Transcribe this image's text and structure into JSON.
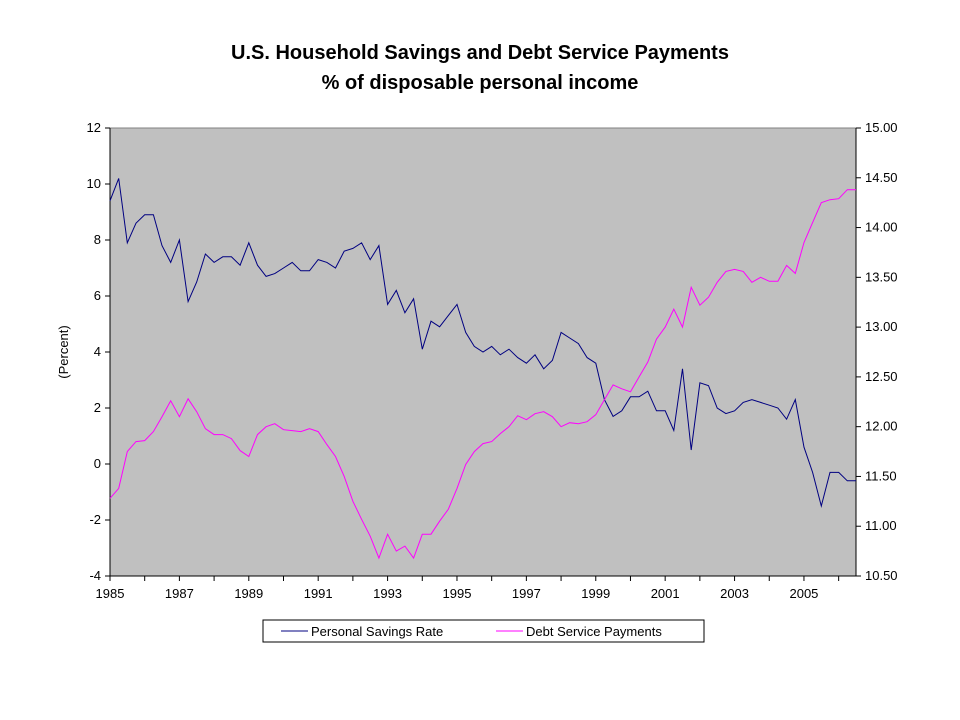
{
  "chart_data": {
    "type": "line",
    "title": "U.S. Household Savings and Debt Service Payments",
    "subtitle": "% of disposable personal income",
    "ylabel": "(Percent)",
    "y2label": "",
    "x_ticks": [
      "1985",
      "1987",
      "1989",
      "1991",
      "1993",
      "1995",
      "1997",
      "1999",
      "2001",
      "2003",
      "2005"
    ],
    "y_ticks": [
      "12",
      "10",
      "8",
      "6",
      "4",
      "2",
      "0",
      "-2",
      "-4"
    ],
    "y2_ticks": [
      "15.00",
      "14.50",
      "14.00",
      "13.50",
      "13.00",
      "12.50",
      "12.00",
      "11.50",
      "11.00",
      "10.50"
    ],
    "ylim": [
      -4,
      12
    ],
    "y2lim": [
      10.5,
      15.0
    ],
    "xlim": [
      1985,
      2006.5
    ],
    "grid": false,
    "plot_background": "#c0c0c0",
    "legend_position": "bottom",
    "x": [
      1985.0,
      1985.25,
      1985.5,
      1985.75,
      1986.0,
      1986.25,
      1986.5,
      1986.75,
      1987.0,
      1987.25,
      1987.5,
      1987.75,
      1988.0,
      1988.25,
      1988.5,
      1988.75,
      1989.0,
      1989.25,
      1989.5,
      1989.75,
      1990.0,
      1990.25,
      1990.5,
      1990.75,
      1991.0,
      1991.25,
      1991.5,
      1991.75,
      1992.0,
      1992.25,
      1992.5,
      1992.75,
      1993.0,
      1993.25,
      1993.5,
      1993.75,
      1994.0,
      1994.25,
      1994.5,
      1994.75,
      1995.0,
      1995.25,
      1995.5,
      1995.75,
      1996.0,
      1996.25,
      1996.5,
      1996.75,
      1997.0,
      1997.25,
      1997.5,
      1997.75,
      1998.0,
      1998.25,
      1998.5,
      1998.75,
      1999.0,
      1999.25,
      1999.5,
      1999.75,
      2000.0,
      2000.25,
      2000.5,
      2000.75,
      2001.0,
      2001.25,
      2001.5,
      2001.75,
      2002.0,
      2002.25,
      2002.5,
      2002.75,
      2003.0,
      2003.25,
      2003.5,
      2003.75,
      2004.0,
      2004.25,
      2004.5,
      2004.75,
      2005.0,
      2005.25,
      2005.5,
      2005.75,
      2006.0,
      2006.25,
      2006.5
    ],
    "series": [
      {
        "name": "Personal Savings Rate",
        "axis": "left",
        "color": "#000080",
        "values": [
          9.4,
          10.2,
          7.9,
          8.6,
          8.9,
          8.9,
          7.8,
          7.2,
          8.0,
          5.8,
          6.5,
          7.5,
          7.2,
          7.4,
          7.4,
          7.1,
          7.9,
          7.1,
          6.7,
          6.8,
          7.0,
          7.2,
          6.9,
          6.9,
          7.3,
          7.2,
          7.0,
          7.6,
          7.7,
          7.9,
          7.3,
          7.8,
          5.7,
          6.2,
          5.4,
          5.9,
          4.1,
          5.1,
          4.9,
          5.3,
          5.7,
          4.7,
          4.2,
          4.0,
          4.2,
          3.9,
          4.1,
          3.8,
          3.6,
          3.9,
          3.4,
          3.7,
          4.7,
          4.5,
          4.3,
          3.8,
          3.6,
          2.3,
          1.7,
          1.9,
          2.4,
          2.4,
          2.6,
          1.9,
          1.9,
          1.2,
          3.4,
          0.5,
          2.9,
          2.8,
          2.0,
          1.8,
          1.9,
          2.2,
          2.3,
          2.2,
          2.1,
          2.0,
          1.6,
          2.3,
          0.6,
          -0.3,
          -1.5,
          -0.3,
          -0.3,
          -0.6,
          -0.6
        ]
      },
      {
        "name": "Debt Service Payments",
        "axis": "right",
        "color": "#ff00ff",
        "values": [
          11.28,
          11.38,
          11.75,
          11.85,
          11.86,
          11.95,
          12.1,
          12.26,
          12.1,
          12.28,
          12.15,
          11.98,
          11.92,
          11.92,
          11.88,
          11.76,
          11.7,
          11.92,
          12.0,
          12.03,
          11.97,
          11.96,
          11.95,
          11.98,
          11.95,
          11.82,
          11.7,
          11.5,
          11.25,
          11.07,
          10.9,
          10.68,
          10.92,
          10.75,
          10.8,
          10.68,
          10.92,
          10.92,
          11.05,
          11.17,
          11.38,
          11.62,
          11.75,
          11.83,
          11.85,
          11.93,
          12.0,
          12.11,
          12.07,
          12.13,
          12.15,
          12.1,
          12.0,
          12.04,
          12.03,
          12.05,
          12.12,
          12.27,
          12.42,
          12.38,
          12.35,
          12.5,
          12.65,
          12.88,
          13.0,
          13.18,
          13.0,
          13.4,
          13.22,
          13.3,
          13.45,
          13.56,
          13.58,
          13.56,
          13.45,
          13.5,
          13.46,
          13.46,
          13.62,
          13.54,
          13.85,
          14.05,
          14.25,
          14.28,
          14.29,
          14.38,
          14.38
        ]
      }
    ]
  },
  "legend": {
    "savings_label": "Personal Savings Rate",
    "debt_label": "Debt Service Payments"
  }
}
